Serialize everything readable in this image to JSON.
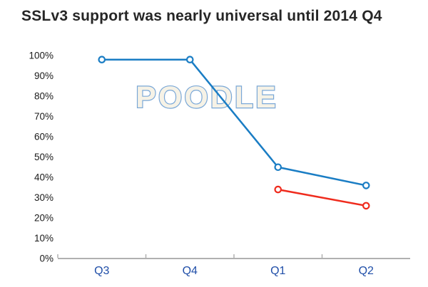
{
  "title": "SSLv3 support was nearly universal until 2014 Q4",
  "watermark": "POODLE",
  "colors": {
    "title": "#262626",
    "axis_line": "#b0b0b0",
    "y_tick_label": "#1a1a1a",
    "x_category_label": "#1f4ea8",
    "series_blue": "#1a7dc4",
    "series_red": "#ef2b1d",
    "marker_fill": "#ffffff",
    "watermark_fill": "#f6f2e6",
    "watermark_stroke": "#79a7d7"
  },
  "chart_data": {
    "type": "line",
    "title": "SSLv3 support was nearly universal until 2014 Q4",
    "categories": [
      "Q3",
      "Q4",
      "Q1",
      "Q2"
    ],
    "series": [
      {
        "key": "blue",
        "values": [
          98,
          98,
          45,
          36
        ]
      },
      {
        "key": "red",
        "values": [
          null,
          null,
          34,
          26
        ]
      }
    ],
    "ylim": [
      0,
      100
    ],
    "yticks": [
      {
        "value": 0,
        "label": "0%"
      },
      {
        "value": 10,
        "label": "10%"
      },
      {
        "value": 20,
        "label": "20%"
      },
      {
        "value": 30,
        "label": "30%"
      },
      {
        "value": 40,
        "label": "40%"
      },
      {
        "value": 50,
        "label": "50%"
      },
      {
        "value": 60,
        "label": "60%"
      },
      {
        "value": 70,
        "label": "70%"
      },
      {
        "value": 80,
        "label": "80%"
      },
      {
        "value": 90,
        "label": "90%"
      },
      {
        "value": 100,
        "label": "100%"
      }
    ],
    "grid": false,
    "legend": "none",
    "annotation": "POODLE"
  }
}
